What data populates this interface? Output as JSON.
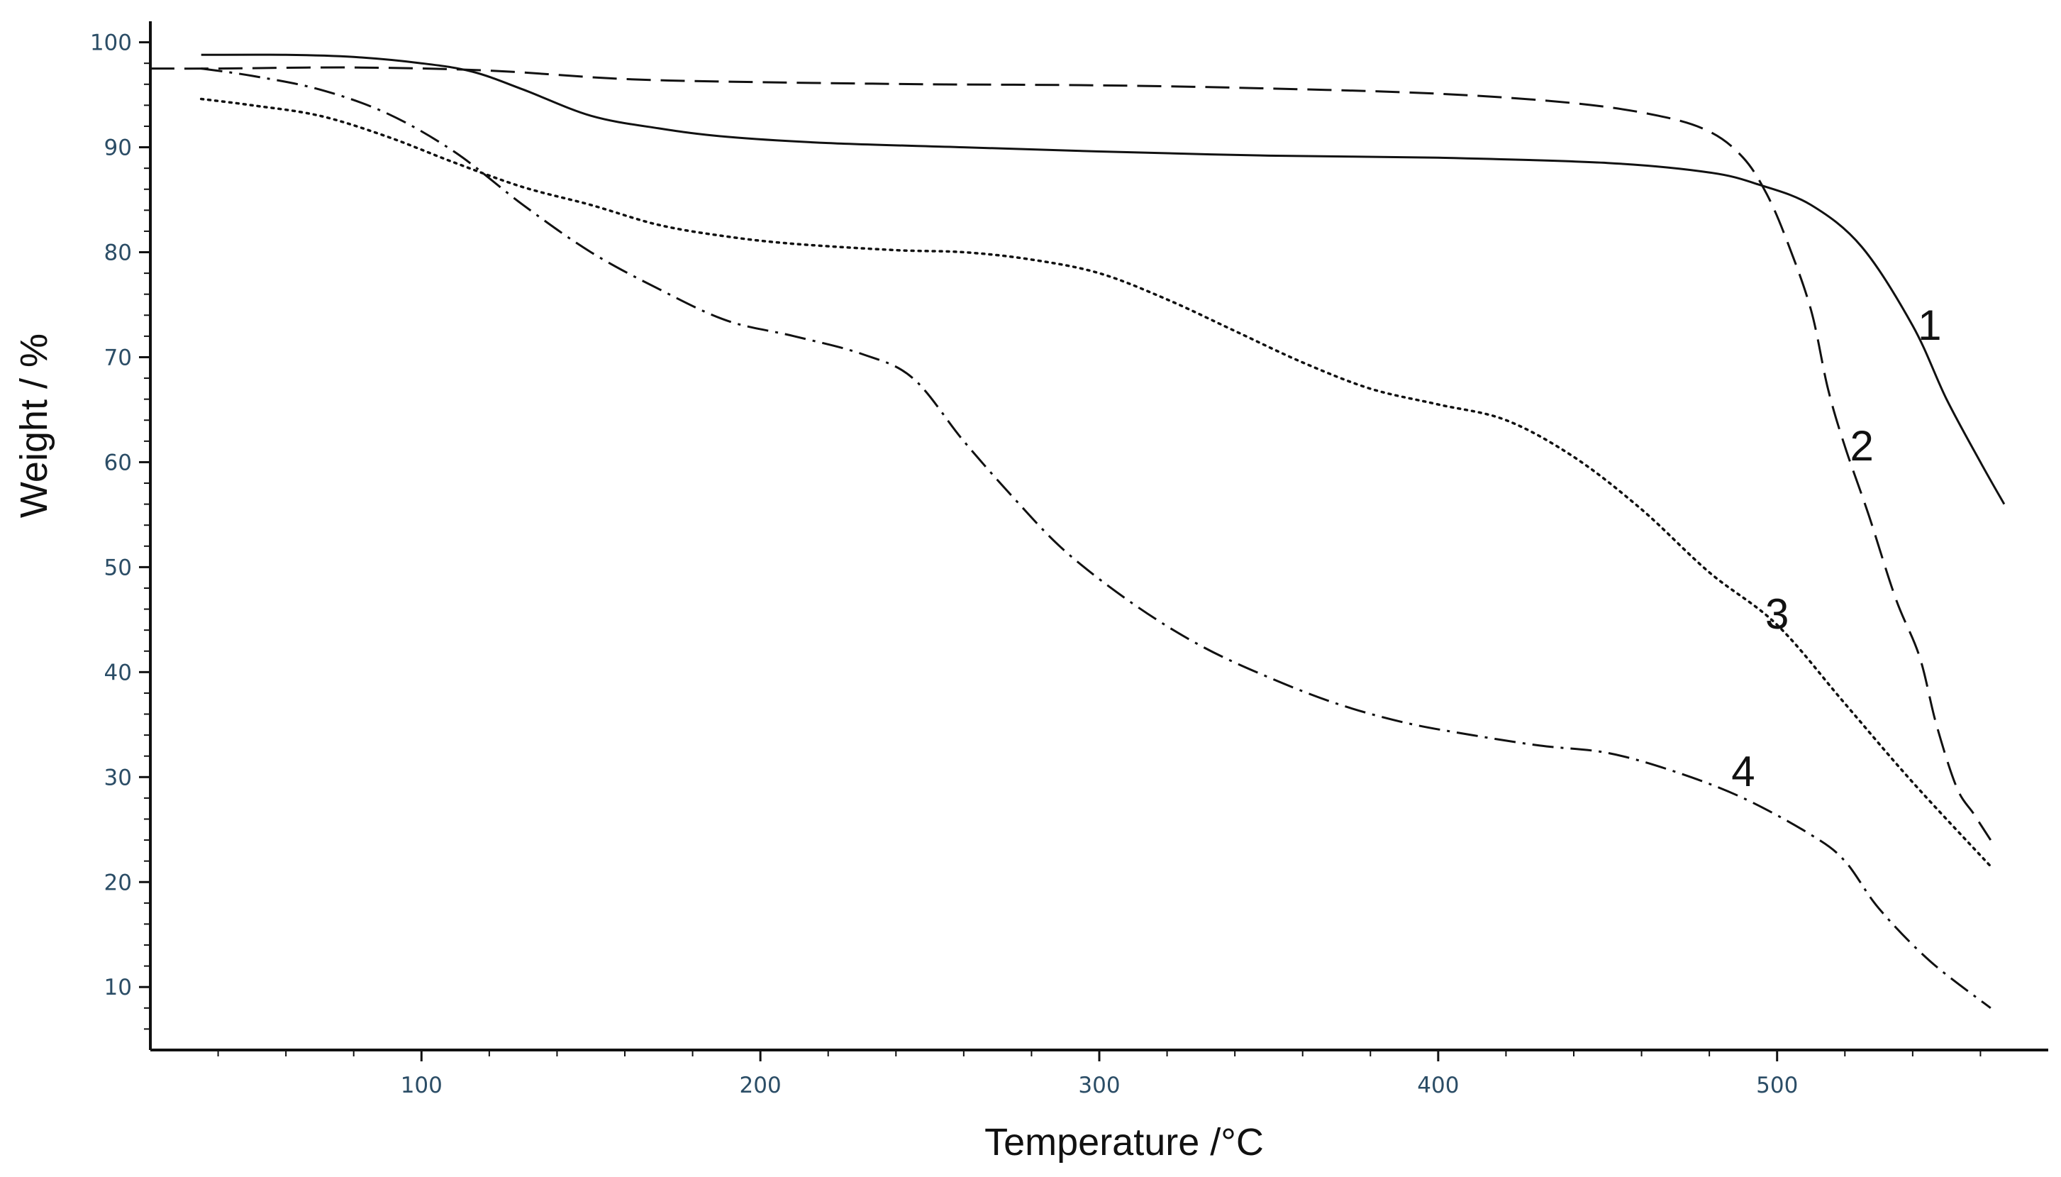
{
  "chart_data": {
    "type": "line",
    "title": "",
    "xlabel": "Temperature /°C",
    "ylabel": "Weight / %",
    "xlim": [
      20,
      580
    ],
    "ylim": [
      4,
      102
    ],
    "xticks": [
      100,
      200,
      300,
      400,
      500
    ],
    "yticks": [
      10,
      20,
      30,
      40,
      50,
      60,
      70,
      80,
      90,
      100
    ],
    "grid": false,
    "legend": "none",
    "colors": {
      "line": "#111111",
      "axis": "#111111",
      "tick_text": "#2b4d66"
    },
    "series": [
      {
        "name": "1",
        "style": "solid",
        "label_at": [
          545,
          73
        ],
        "points": [
          [
            35,
            98.8
          ],
          [
            60,
            98.8
          ],
          [
            80,
            98.6
          ],
          [
            100,
            98.0
          ],
          [
            115,
            97.2
          ],
          [
            130,
            95.5
          ],
          [
            150,
            93.0
          ],
          [
            170,
            91.8
          ],
          [
            190,
            91.0
          ],
          [
            220,
            90.4
          ],
          [
            260,
            90.0
          ],
          [
            300,
            89.6
          ],
          [
            350,
            89.2
          ],
          [
            400,
            89.0
          ],
          [
            450,
            88.5
          ],
          [
            480,
            87.6
          ],
          [
            495,
            86.4
          ],
          [
            510,
            84.5
          ],
          [
            525,
            80.5
          ],
          [
            540,
            73.0
          ],
          [
            550,
            66.0
          ],
          [
            560,
            60.0
          ],
          [
            567,
            56.0
          ]
        ]
      },
      {
        "name": "2",
        "style": "dashed",
        "label_at": [
          525,
          61.5
        ],
        "points": [
          [
            20,
            97.5
          ],
          [
            40,
            97.5
          ],
          [
            80,
            97.6
          ],
          [
            120,
            97.3
          ],
          [
            160,
            96.5
          ],
          [
            200,
            96.2
          ],
          [
            250,
            96.0
          ],
          [
            300,
            95.9
          ],
          [
            350,
            95.6
          ],
          [
            400,
            95.1
          ],
          [
            440,
            94.2
          ],
          [
            465,
            93.0
          ],
          [
            480,
            91.5
          ],
          [
            490,
            89.0
          ],
          [
            497,
            85.5
          ],
          [
            503,
            81.0
          ],
          [
            510,
            74.5
          ],
          [
            515,
            67.0
          ],
          [
            520,
            61.5
          ],
          [
            527,
            55.0
          ],
          [
            535,
            47.0
          ],
          [
            542,
            41.5
          ],
          [
            547,
            35.0
          ],
          [
            553,
            29.0
          ],
          [
            558,
            26.5
          ],
          [
            563,
            24.0
          ]
        ]
      },
      {
        "name": "3",
        "style": "dotted",
        "label_at": [
          500,
          45.5
        ],
        "points": [
          [
            35,
            94.6
          ],
          [
            50,
            94.0
          ],
          [
            70,
            93.0
          ],
          [
            90,
            91.0
          ],
          [
            110,
            88.5
          ],
          [
            130,
            86.2
          ],
          [
            150,
            84.5
          ],
          [
            170,
            82.6
          ],
          [
            190,
            81.5
          ],
          [
            210,
            80.8
          ],
          [
            240,
            80.2
          ],
          [
            260,
            80.0
          ],
          [
            280,
            79.3
          ],
          [
            300,
            78.0
          ],
          [
            320,
            75.5
          ],
          [
            340,
            72.5
          ],
          [
            360,
            69.5
          ],
          [
            380,
            67.0
          ],
          [
            400,
            65.5
          ],
          [
            420,
            64.0
          ],
          [
            440,
            60.5
          ],
          [
            460,
            55.5
          ],
          [
            480,
            49.5
          ],
          [
            500,
            44.5
          ],
          [
            520,
            37.0
          ],
          [
            540,
            29.5
          ],
          [
            563,
            21.5
          ]
        ]
      },
      {
        "name": "4",
        "style": "dashdot",
        "label_at": [
          490,
          30.5
        ],
        "points": [
          [
            35,
            97.5
          ],
          [
            50,
            96.8
          ],
          [
            70,
            95.5
          ],
          [
            90,
            93.2
          ],
          [
            110,
            89.5
          ],
          [
            130,
            84.5
          ],
          [
            150,
            80.0
          ],
          [
            170,
            76.5
          ],
          [
            190,
            73.5
          ],
          [
            210,
            72.0
          ],
          [
            230,
            70.3
          ],
          [
            245,
            68.0
          ],
          [
            260,
            62.0
          ],
          [
            275,
            56.5
          ],
          [
            290,
            51.5
          ],
          [
            310,
            46.5
          ],
          [
            330,
            42.5
          ],
          [
            350,
            39.5
          ],
          [
            370,
            37.0
          ],
          [
            390,
            35.2
          ],
          [
            410,
            34.0
          ],
          [
            430,
            33.0
          ],
          [
            450,
            32.3
          ],
          [
            470,
            30.5
          ],
          [
            490,
            28.0
          ],
          [
            510,
            24.5
          ],
          [
            520,
            22.0
          ],
          [
            530,
            17.5
          ],
          [
            545,
            12.5
          ],
          [
            563,
            8.0
          ]
        ]
      }
    ]
  }
}
